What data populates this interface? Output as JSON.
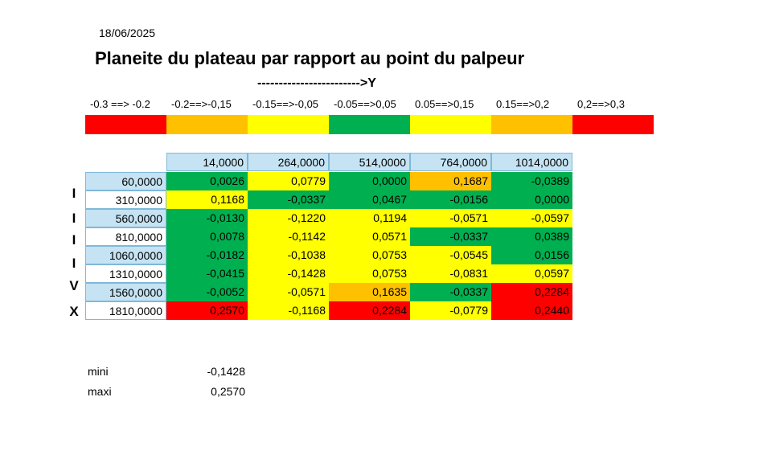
{
  "date": "18/06/2025",
  "title": "Planeite du plateau par rapport au point du palpeur",
  "y_axis_label": "------------------------>Y",
  "x_axis_letters": [
    "I",
    "I",
    "I",
    "I",
    "V",
    "X"
  ],
  "legend": [
    {
      "label": "-0.3 ==> -0.2",
      "color": "#ff0000"
    },
    {
      "label": "-0.2==>-0,15",
      "color": "#ffc000"
    },
    {
      "label": "-0.15==>-0,05",
      "color": "#ffff00"
    },
    {
      "label": "-0.05==>0,05",
      "color": "#00b050"
    },
    {
      "label": "0.05==>0,15",
      "color": "#ffff00"
    },
    {
      "label": "0.15==>0,2",
      "color": "#ffc000"
    },
    {
      "label": "0,2==>0,3",
      "color": "#ff0000"
    }
  ],
  "table": {
    "columns": [
      "14,0000",
      "264,0000",
      "514,0000",
      "764,0000",
      "1014,0000"
    ],
    "rows": [
      {
        "x": "60,0000",
        "values": [
          "0,0026",
          "0,0779",
          "0,0000",
          "0,1687",
          "-0,0389"
        ],
        "colors": [
          "#00b050",
          "#ffff00",
          "#00b050",
          "#ffc000",
          "#00b050"
        ]
      },
      {
        "x": "310,0000",
        "values": [
          "0,1168",
          "-0,0337",
          "0,0467",
          "-0,0156",
          "0,0000"
        ],
        "colors": [
          "#ffff00",
          "#00b050",
          "#00b050",
          "#00b050",
          "#00b050"
        ]
      },
      {
        "x": "560,0000",
        "values": [
          "-0,0130",
          "-0,1220",
          "0,1194",
          "-0,0571",
          "-0,0597"
        ],
        "colors": [
          "#00b050",
          "#ffff00",
          "#ffff00",
          "#ffff00",
          "#ffff00"
        ]
      },
      {
        "x": "810,0000",
        "values": [
          "0,0078",
          "-0,1142",
          "0,0571",
          "-0,0337",
          "0,0389"
        ],
        "colors": [
          "#00b050",
          "#ffff00",
          "#ffff00",
          "#00b050",
          "#00b050"
        ]
      },
      {
        "x": "1060,0000",
        "values": [
          "-0,0182",
          "-0,1038",
          "0,0753",
          "-0,0545",
          "0,0156"
        ],
        "colors": [
          "#00b050",
          "#ffff00",
          "#ffff00",
          "#ffff00",
          "#00b050"
        ]
      },
      {
        "x": "1310,0000",
        "values": [
          "-0,0415",
          "-0,1428",
          "0,0753",
          "-0,0831",
          "0,0597"
        ],
        "colors": [
          "#00b050",
          "#ffff00",
          "#ffff00",
          "#ffff00",
          "#ffff00"
        ]
      },
      {
        "x": "1560,0000",
        "values": [
          "-0,0052",
          "-0,0571",
          "0,1635",
          "-0,0337",
          "0,2284"
        ],
        "colors": [
          "#00b050",
          "#ffff00",
          "#ffc000",
          "#00b050",
          "#ff0000"
        ]
      },
      {
        "x": "1810,0000",
        "values": [
          "0,2570",
          "-0,1168",
          "0,2284",
          "-0,0779",
          "0,2440"
        ],
        "colors": [
          "#ff0000",
          "#ffff00",
          "#ff0000",
          "#ffff00",
          "#ff0000"
        ]
      }
    ]
  },
  "stats": [
    {
      "label": "mini",
      "value": "-0,1428"
    },
    {
      "label": "maxi",
      "value": "0,2570"
    }
  ]
}
